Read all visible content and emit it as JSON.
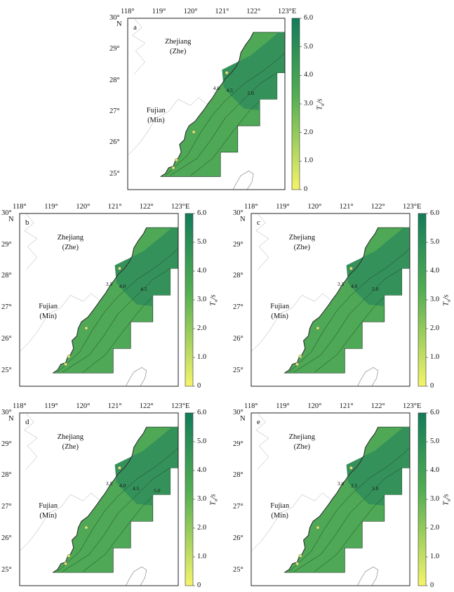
{
  "figure": {
    "lon_ticks": [
      "118°",
      "119°",
      "120°",
      "121°",
      "122°",
      "123°E"
    ],
    "lat_ticks": [
      "25°",
      "26°",
      "27°",
      "28°",
      "29°",
      "30°"
    ],
    "lat_top_unit": "N",
    "regions": {
      "zhejiang": "Zhejiang",
      "zhejiang_abbr": "(Zhe)",
      "fujian": "Fujian",
      "fujian_abbr": "(Min)"
    },
    "colorbar": {
      "title_main": "T",
      "title_sub": "a",
      "title_unit": "/s",
      "ticks": [
        "0",
        "1.0",
        "2.0",
        "3.0",
        "4.0",
        "5.0",
        "6.0"
      ],
      "range": [
        0,
        6
      ],
      "color_low": "#f5f46a",
      "color_mid": "#52ae52",
      "color_high": "#127c59"
    },
    "sea_colors": {
      "shallow": "#4ea855",
      "deep": "#34915a"
    },
    "panels": [
      {
        "letter": "a",
        "contours": [
          "4.0",
          "4.5",
          "5.0"
        ]
      },
      {
        "letter": "b",
        "contours": [
          "3.5",
          "4.0",
          "4.5"
        ]
      },
      {
        "letter": "c",
        "contours": [
          "3.5",
          "4.0",
          "5.0"
        ]
      },
      {
        "letter": "d",
        "contours": [
          "3.5",
          "4.0",
          "4.5",
          "5.0"
        ]
      },
      {
        "letter": "e",
        "contours": [
          "3.0",
          "3.5",
          "5.0"
        ]
      }
    ]
  }
}
